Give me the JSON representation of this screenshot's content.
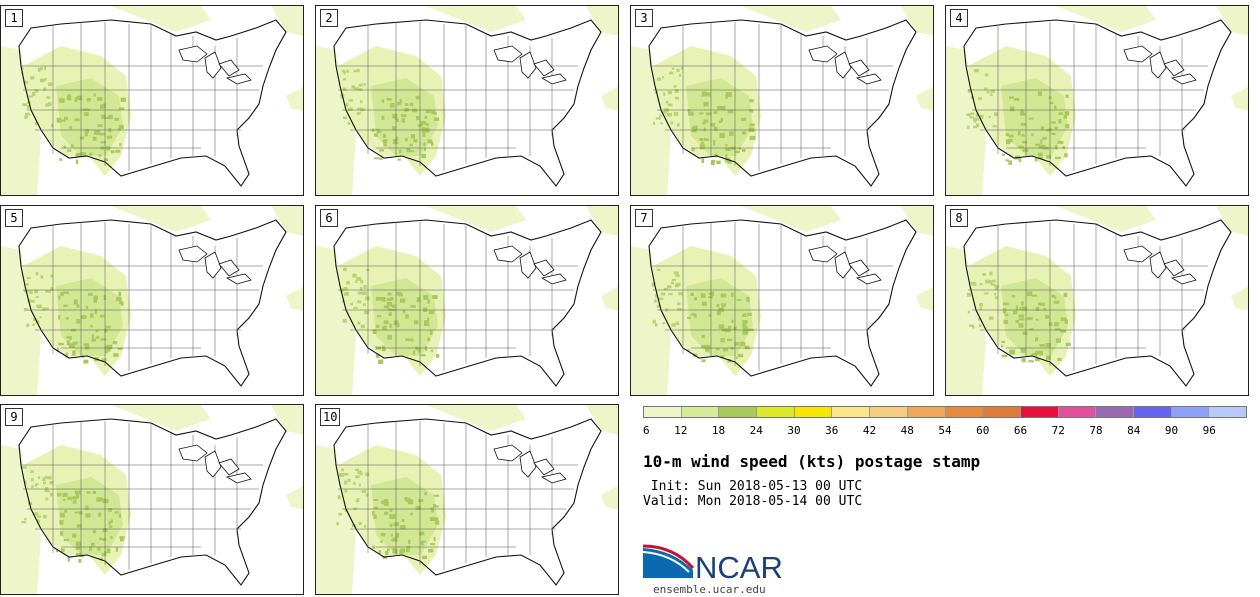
{
  "panels": [
    "1",
    "2",
    "3",
    "4",
    "5",
    "6",
    "7",
    "8",
    "9",
    "10"
  ],
  "colorbar": {
    "ticks": [
      "6",
      "12",
      "18",
      "24",
      "30",
      "36",
      "42",
      "48",
      "54",
      "60",
      "66",
      "72",
      "78",
      "84",
      "90",
      "96"
    ],
    "colors": [
      "#eef5c8",
      "#d6eb9a",
      "#a8c95c",
      "#dce82a",
      "#f8e600",
      "#fbe58a",
      "#f5cd7e",
      "#eea85a",
      "#e88a3c",
      "#de7a3c",
      "#e8103c",
      "#e0509c",
      "#9a6ab0",
      "#6464f0",
      "#8ca0f8",
      "#b8c8f8"
    ]
  },
  "title": "10-m wind speed (kts) postage stamp",
  "init": " Init: Sun 2018-05-13 00 UTC",
  "valid": "Valid: Mon 2018-05-14 00 UTC",
  "logo": {
    "text": "NCAR",
    "url": "ensemble.ucar.edu"
  }
}
